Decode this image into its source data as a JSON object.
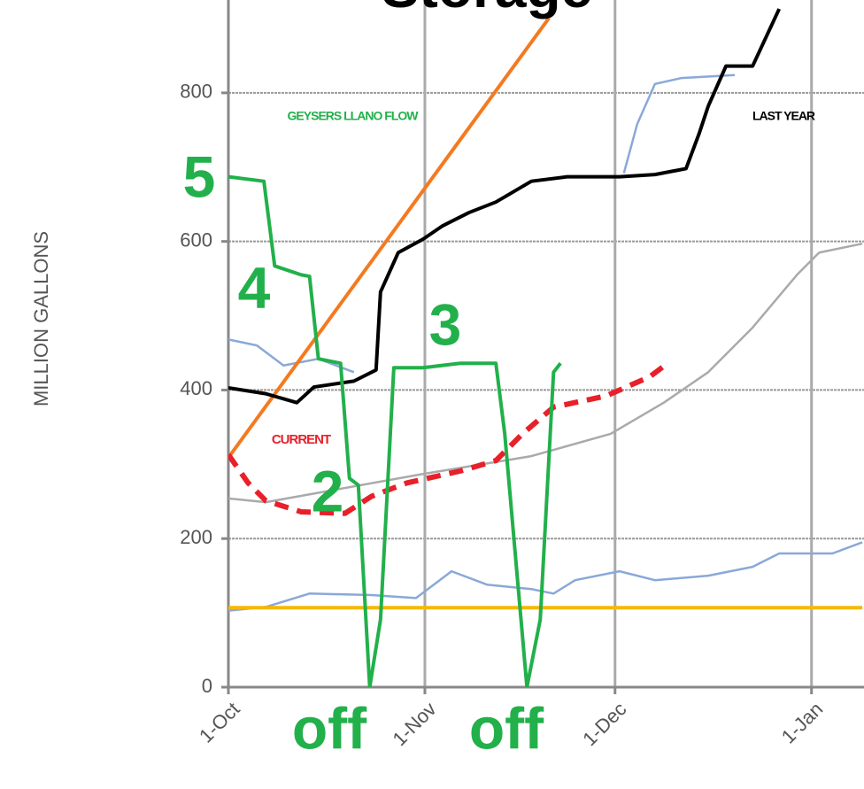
{
  "chart_data": {
    "type": "line",
    "title": "Storage",
    "y_label": "MILLION GALLONS",
    "xlim": [
      0,
      100
    ],
    "ylim": [
      0,
      925
    ],
    "xticks": [
      {
        "value": 0,
        "label": "1-Oct"
      },
      {
        "value": 31,
        "label": "1-Nov"
      },
      {
        "value": 61,
        "label": "1-Dec"
      },
      {
        "value": 92,
        "label": "1-Jan"
      }
    ],
    "yticks": [
      0,
      200,
      400,
      600,
      800
    ],
    "grid": true,
    "series": [
      {
        "color": "#aaaaaa",
        "x": [
          0,
          5.9,
          17,
          30.7,
          47.8,
          60.3,
          68.7,
          75.7,
          82.7,
          89.7,
          93.2,
          100
        ],
        "values": [
          254,
          249,
          266,
          287,
          311,
          341,
          383,
          424,
          484,
          555,
          585,
          597
        ]
      },
      {
        "color": "#8aa8d8",
        "x": [
          0,
          4.5,
          8.7,
          14.2,
          19.8,
          40,
          62.4,
          64.5,
          67.3,
          71.5,
          79.9
        ],
        "values": [
          468,
          460,
          433,
          442,
          424,
          null,
          692,
          758,
          812,
          820,
          824
        ]
      },
      {
        "color": "#8aa8d8",
        "x": [
          0,
          5.9,
          12.8,
          22.6,
          29.6,
          35.2,
          40.8,
          47.8,
          51.3,
          54.7,
          61.7,
          67.3,
          75.7,
          82.7,
          86.9,
          95.3,
          100
        ],
        "values": [
          103,
          108,
          126,
          124,
          120,
          156,
          138,
          132,
          126,
          144,
          156,
          144,
          150,
          162,
          180,
          180,
          195
        ]
      },
      {
        "color": "#f5b800",
        "x": [
          0,
          100
        ],
        "values": [
          107,
          107
        ]
      },
      {
        "color": "#f47a20",
        "x": [
          0,
          50.6
        ],
        "values": [
          309,
          901
        ]
      },
      {
        "name": "LAST YEAR",
        "color": "#000000",
        "x": [
          0,
          5.9,
          10.8,
          13.5,
          19.8,
          23.3,
          24,
          26.8,
          30.7,
          33.8,
          38,
          42.2,
          47.8,
          53.4,
          61.7,
          67.3,
          72.2,
          74.3,
          75.7,
          78.5,
          82.7,
          86.9
        ],
        "values": [
          403,
          395,
          383,
          404,
          412,
          427,
          532,
          585,
          603,
          621,
          639,
          653,
          681,
          687,
          687,
          690,
          698,
          746,
          782,
          836,
          836,
          913
        ]
      },
      {
        "name": "CURRENT",
        "color": "#e8202a",
        "dashed": true,
        "x": [
          0,
          3.1,
          5.9,
          11.5,
          18.4,
          22.6,
          28.2,
          36.6,
          42.2,
          46.4,
          51.3,
          59.6,
          66.5,
          69.3
        ],
        "values": [
          313,
          275,
          251,
          236,
          234,
          257,
          275,
          291,
          305,
          341,
          377,
          392,
          418,
          436
        ]
      },
      {
        "name": "GEYSERS LLANO FLOW",
        "color": "#22b04b",
        "x": [
          0,
          5.6,
          7.3,
          11.5,
          12.8,
          14.2,
          17.7,
          19.1,
          20.5,
          22.3,
          24,
          26.1,
          30.7,
          36.6,
          42.2,
          43.6,
          47.1,
          49.2,
          51.3,
          52.4
        ],
        "values": [
          687,
          681,
          567,
          555,
          553,
          442,
          436,
          281,
          272,
          0,
          91,
          430,
          430,
          436,
          436,
          341,
          0,
          91,
          424,
          436
        ]
      }
    ],
    "annotations": [
      "5",
      "4",
      "3",
      "2",
      "off",
      "off"
    ]
  }
}
